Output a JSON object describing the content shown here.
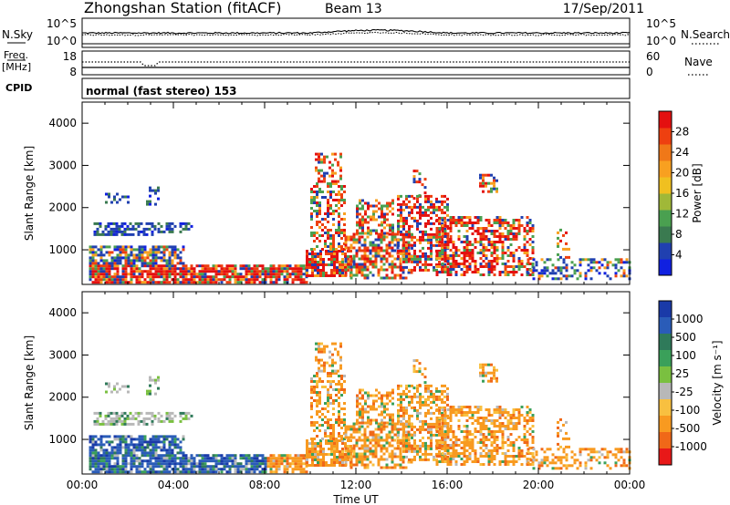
{
  "header": {
    "title": "Zhongshan Station (fitACF)",
    "beam": "Beam 13",
    "date": "17/Sep/2011"
  },
  "panels": {
    "nsky": {
      "left_label": "N.Sky",
      "left_ticks": [
        "10^5",
        "10^0"
      ],
      "right_label": "N.Search",
      "right_ticks": [
        "10^5",
        "10^0"
      ]
    },
    "freq": {
      "left_label_1": "Freq.",
      "left_label_2": "[MHz]",
      "left_ticks": [
        "18",
        "8"
      ],
      "right_label": "Nave",
      "right_ticks": [
        "60",
        "0"
      ]
    },
    "cpid": {
      "label": "CPID",
      "mode_text": "normal (fast stereo) 153"
    }
  },
  "chart_data": [
    {
      "type": "heatmap",
      "name": "power",
      "xlabel": "",
      "ylabel": "Slant Range [km]",
      "x_range_hours": [
        0,
        24
      ],
      "ylim": [
        180,
        4500
      ],
      "yticks": [
        "1000",
        "2000",
        "3000",
        "4000"
      ],
      "colorbar": {
        "label": "Power [dB]",
        "ticks": [
          "4",
          "8",
          "12",
          "16",
          "20",
          "24",
          "28"
        ],
        "colors": [
          "#1020e0",
          "#2040b0",
          "#3a7a50",
          "#4aa050",
          "#a0b838",
          "#f0c020",
          "#f8a020",
          "#f07818",
          "#ee4010",
          "#e41010"
        ]
      }
    },
    {
      "type": "heatmap",
      "name": "velocity",
      "xlabel": "Time UT",
      "ylabel": "Slant Range [km]",
      "x_range_hours": [
        0,
        24
      ],
      "xticks": [
        "00:00",
        "04:00",
        "08:00",
        "12:00",
        "16:00",
        "20:00",
        "00:00"
      ],
      "ylim": [
        180,
        4500
      ],
      "yticks": [
        "1000",
        "2000",
        "3000",
        "4000"
      ],
      "colorbar": {
        "label": "Velocity [m s⁻¹]",
        "ticks": [
          "1000",
          "500",
          "100",
          "25",
          "-25",
          "-100",
          "-500",
          "-1000"
        ],
        "colors": [
          "#1a3aa8",
          "#2a5cb8",
          "#2f7a5a",
          "#3aa05a",
          "#7ac040",
          "#b8b8b8",
          "#f8c040",
          "#f89a20",
          "#f06818",
          "#e81818"
        ]
      }
    }
  ]
}
